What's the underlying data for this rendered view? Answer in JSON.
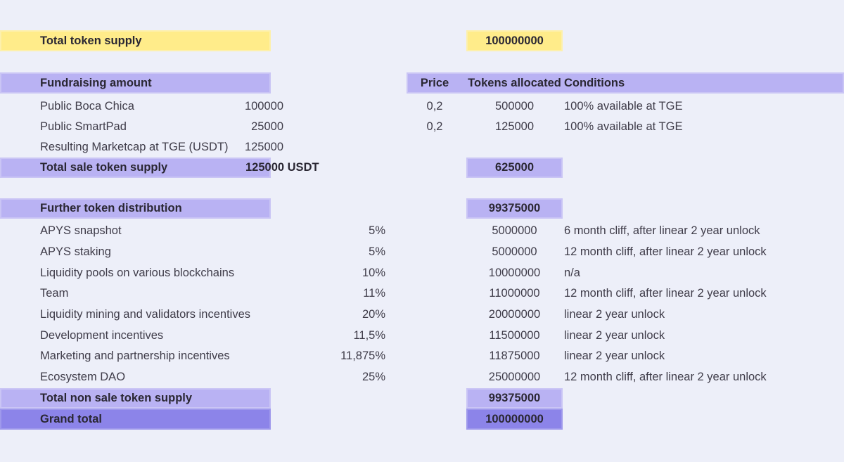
{
  "colors": {
    "background": "#edeff9",
    "yellow": "#ffec8a",
    "purple_light": "#b9b2f3",
    "purple_dark": "#8c84e9",
    "text_bold": "#2a2733",
    "text_body": "#3f3c49"
  },
  "total_supply": {
    "label": "Total token supply",
    "value": "100000000"
  },
  "fundraising": {
    "header": {
      "label": "Fundraising amount",
      "price": "Price",
      "tokens": "Tokens allocated",
      "conditions": "Conditions"
    },
    "rows": [
      {
        "label": "Public Boca Chica",
        "amount": "100000",
        "price": "0,2",
        "tokens": "500000",
        "conditions": "100% available at TGE"
      },
      {
        "label": "Public SmartPad",
        "amount": "25000",
        "price": "0,2",
        "tokens": "125000",
        "conditions": "100% available at TGE"
      },
      {
        "label": "Resulting Marketcap at TGE (USDT)",
        "amount": "125000",
        "price": "",
        "tokens": "",
        "conditions": ""
      }
    ],
    "total": {
      "label": "Total sale token supply",
      "amount": "125000 USDT",
      "tokens": "625000"
    }
  },
  "distribution": {
    "header": {
      "label": "Further token distribution",
      "tokens": "99375000"
    },
    "rows": [
      {
        "label": "APYS snapshot",
        "percent": "5%",
        "tokens": "5000000",
        "conditions": "6 month cliff, after linear 2 year unlock"
      },
      {
        "label": "APYS staking",
        "percent": "5%",
        "tokens": "5000000",
        "conditions": "12 month cliff, after linear 2 year unlock"
      },
      {
        "label": "Liquidity pools on various blockchains",
        "percent": "10%",
        "tokens": "10000000",
        "conditions": "n/a"
      },
      {
        "label": "Team",
        "percent": "11%",
        "tokens": "11000000",
        "conditions": "12 month cliff, after linear 2 year unlock"
      },
      {
        "label": "Liquidity mining and validators incentives",
        "percent": "20%",
        "tokens": "20000000",
        "conditions": "linear 2 year unlock"
      },
      {
        "label": "Development incentives",
        "percent": "11,5%",
        "tokens": "11500000",
        "conditions": "linear 2 year unlock"
      },
      {
        "label": "Marketing and partnership incentives",
        "percent": "11,875%",
        "tokens": "11875000",
        "conditions": "linear 2 year unlock"
      },
      {
        "label": "Ecosystem DAO",
        "percent": "25%",
        "tokens": "25000000",
        "conditions": "12 month cliff, after linear 2 year unlock"
      }
    ],
    "total_non_sale": {
      "label": "Total non sale token supply",
      "tokens": "99375000"
    },
    "grand_total": {
      "label": "Grand total",
      "tokens": "100000000"
    }
  }
}
